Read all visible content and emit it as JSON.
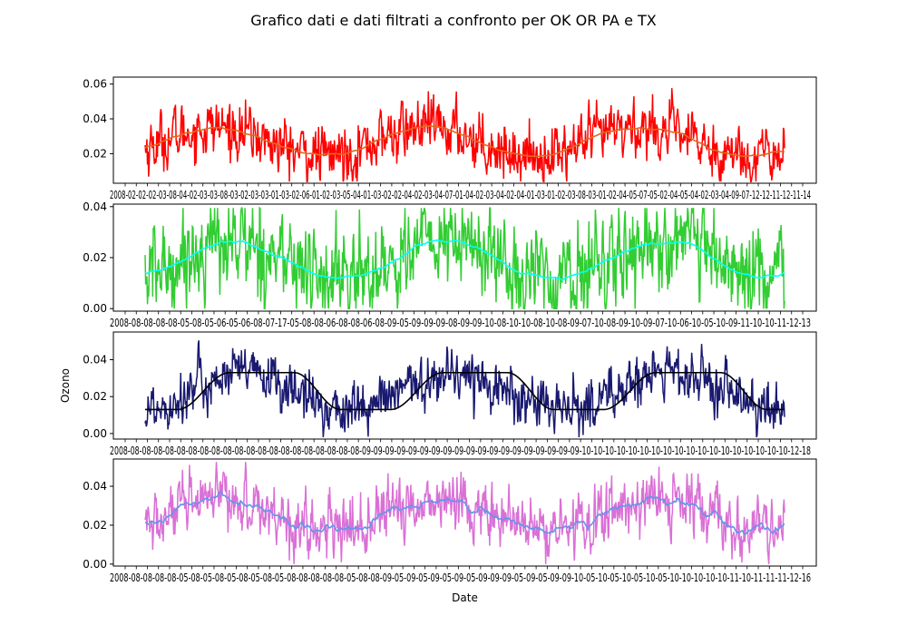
{
  "title": "Grafico dati e dati filtrati a confronto per OK OR PA e TX",
  "chart_data": [
    {
      "type": "line",
      "xlabel": "",
      "ylabel": "",
      "xlim": [
        "2008-01-01",
        "2010-12-31"
      ],
      "ylim": [
        0.003,
        0.064
      ],
      "yticks": [
        "0.02",
        "0.04",
        "0.06"
      ],
      "x_tick_text": "2008-02-02-02-03-08-04-02-03-03-08-03-02-03-03-01-03-02-06-01-02-03-05-04-01-03-02-02-04-02-03-04-07-01-04-02-03-04-02-04-01-03-01-02-03-08-03-01-02-04-05-07-05-02-04-05-04-02-03-04-09-07-12-12-11-12-11-14",
      "raw_color": "#ff0000",
      "filtered_color": "#e06a1a",
      "raw_series": {
        "base": 0.027,
        "amplitude": 0.008,
        "noise": 0.0075,
        "phase_day": 120
      },
      "filtered_series": {
        "kind": "smooth",
        "base": 0.027,
        "amplitude": 0.008,
        "phase_day": 120
      }
    },
    {
      "type": "line",
      "xlabel": "",
      "ylabel": "",
      "xlim": [
        "2008-01-01",
        "2010-12-31"
      ],
      "ylim": [
        -0.001,
        0.041
      ],
      "yticks": [
        "0.00",
        "0.02",
        "0.04"
      ],
      "x_tick_text": "2008-08-08-08-08-05-08-05-06-05-06-08-07-17-05-08-08-06-08-08-06-08-09-05-09-09-09-08-09-09-10-08-10-10-08-10-08-09-07-10-08-09-10-09-07-10-06-10-05-10-09-11-10-10-11-12-13",
      "raw_color": "#32cd32",
      "filtered_color": "#00ffff",
      "raw_series": {
        "base": 0.019,
        "amplitude": 0.0075,
        "noise": 0.0085,
        "phase_day": 150
      },
      "filtered_series": {
        "kind": "smooth",
        "base": 0.019,
        "amplitude": 0.0075,
        "phase_day": 150
      }
    },
    {
      "type": "line",
      "xlabel": "",
      "ylabel": "Ozono",
      "xlim": [
        "2008-01-01",
        "2010-12-31"
      ],
      "ylim": [
        -0.003,
        0.055
      ],
      "yticks": [
        "0.00",
        "0.02",
        "0.04"
      ],
      "x_tick_text": "2008-08-08-08-08-08-08-08-08-08-08-08-08-08-08-08-08-08-08-08-08-09-09-09-09-09-09-09-09-09-09-09-09-09-09-09-09-09-09-09-10-10-10-10-10-10-10-10-10-10-10-10-10-10-10-10-10-10-12-18",
      "raw_color": "#191970",
      "filtered_color": "#000000",
      "raw_series": {
        "base": 0.0225,
        "amplitude": 0.01,
        "noise": 0.0065,
        "phase_day": 165
      },
      "filtered_series": {
        "kind": "plateau",
        "low": 0.013,
        "high": 0.033
      }
    },
    {
      "type": "line",
      "xlabel": "Date",
      "ylabel": "",
      "xlim": [
        "2008-01-01",
        "2010-12-31"
      ],
      "ylim": [
        -0.001,
        0.054
      ],
      "yticks": [
        "0.00",
        "0.02",
        "0.04"
      ],
      "x_tick_text": "2008-08-08-08-08-05-08-05-08-05-08-05-08-05-08-08-08-08-08-05-08-08-09-05-09-05-09-05-09-05-09-09-09-05-09-05-09-09-10-05-10-05-10-05-10-05-10-10-10-10-10-11-10-11-11-11-12-16",
      "raw_color": "#da70d6",
      "filtered_color": "#6495ed",
      "raw_series": {
        "base": 0.025,
        "amplitude": 0.008,
        "noise": 0.007,
        "phase_day": 140
      },
      "filtered_series": {
        "kind": "smooth-noisy",
        "base": 0.025,
        "amplitude": 0.008,
        "phase_day": 140
      }
    }
  ]
}
